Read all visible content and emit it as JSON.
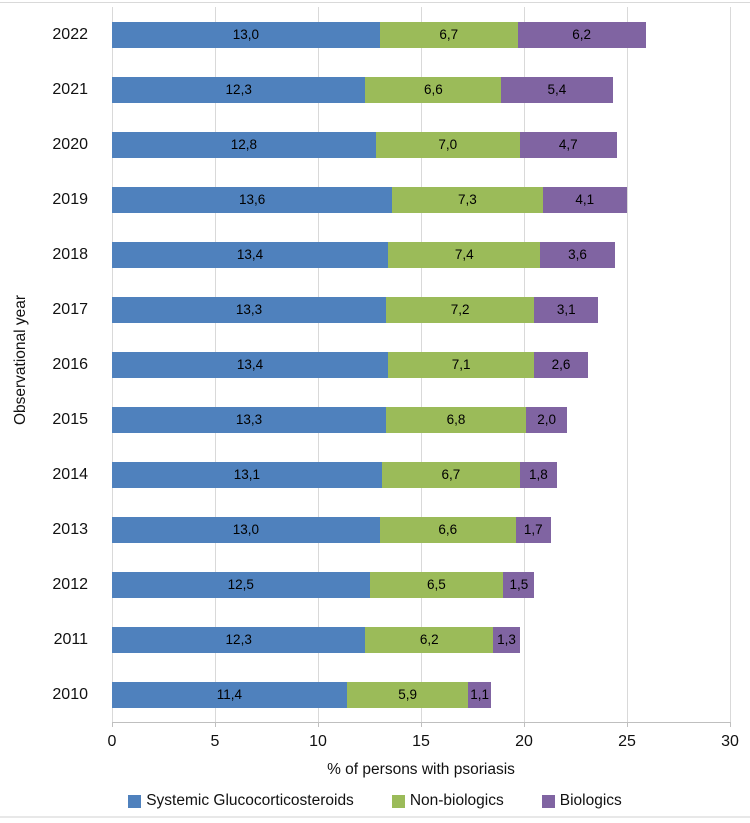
{
  "figure": {
    "description": "Horizontal stacked bar chart of psoriasis treatment use by observational year"
  },
  "chart_data": {
    "type": "bar",
    "orientation": "horizontal",
    "stacked": true,
    "title": "",
    "xlabel": "% of persons with psoriasis",
    "ylabel": "Observational year",
    "xlim": [
      0,
      30
    ],
    "x_ticks": [
      0,
      5,
      10,
      15,
      20,
      25,
      30
    ],
    "x_tick_labels": [
      "0",
      "5",
      "10",
      "15",
      "20",
      "25",
      "30"
    ],
    "grid": true,
    "legend_position": "bottom",
    "categories": [
      "2022",
      "2021",
      "2020",
      "2019",
      "2018",
      "2017",
      "2016",
      "2015",
      "2014",
      "2013",
      "2012",
      "2011",
      "2010"
    ],
    "series": [
      {
        "name": "Systemic Glucocorticosteroids",
        "color": "#4F81BD",
        "values": [
          13.0,
          12.3,
          12.8,
          13.6,
          13.4,
          13.3,
          13.4,
          13.3,
          13.1,
          13.0,
          12.5,
          12.3,
          11.4
        ],
        "labels": [
          "13,0",
          "12,3",
          "12,8",
          "13,6",
          "13,4",
          "13,3",
          "13,4",
          "13,3",
          "13,1",
          "13,0",
          "12,5",
          "12,3",
          "11,4"
        ]
      },
      {
        "name": "Non-biologics",
        "color": "#9BBB59",
        "values": [
          6.7,
          6.6,
          7.0,
          7.3,
          7.4,
          7.2,
          7.1,
          6.8,
          6.7,
          6.6,
          6.5,
          6.2,
          5.9
        ],
        "labels": [
          "6,7",
          "6,6",
          "7,0",
          "7,3",
          "7,4",
          "7,2",
          "7,1",
          "6,8",
          "6,7",
          "6,6",
          "6,5",
          "6,2",
          "5,9"
        ]
      },
      {
        "name": "Biologics",
        "color": "#8064A2",
        "values": [
          6.2,
          5.4,
          4.7,
          4.1,
          3.6,
          3.1,
          2.6,
          2.0,
          1.8,
          1.7,
          1.5,
          1.3,
          1.1
        ],
        "labels": [
          "6,2",
          "5,4",
          "4,7",
          "4,1",
          "3,6",
          "3,1",
          "2,6",
          "2,0",
          "1,8",
          "1,7",
          "1,5",
          "1,3",
          "1,1"
        ]
      }
    ],
    "colors": {
      "gridline": "#d9d9d9",
      "axis_line": "#bfbfbf",
      "label_text": "#000000"
    }
  }
}
